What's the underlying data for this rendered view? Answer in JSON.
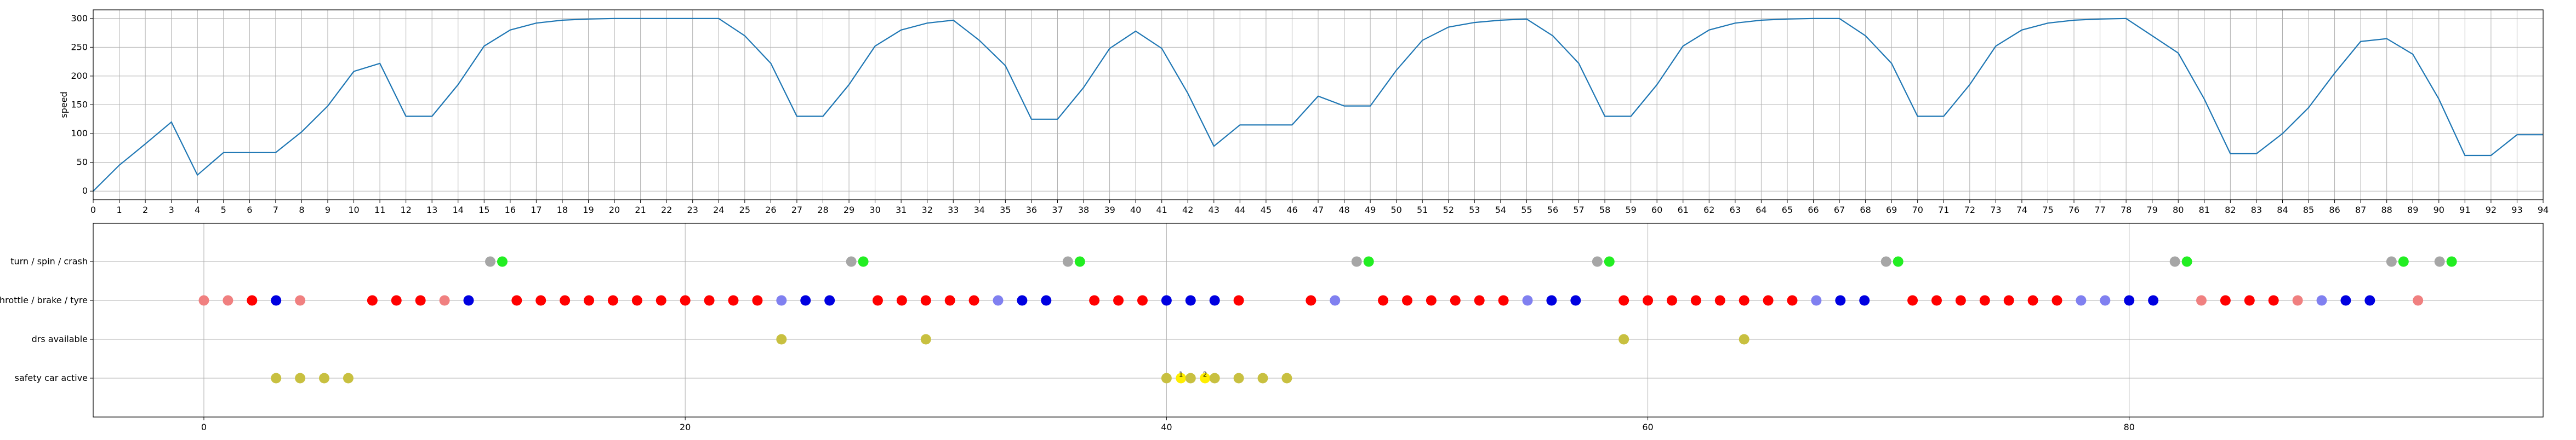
{
  "chart_data": [
    {
      "type": "line",
      "ylabel": "speed",
      "xlabel": "",
      "title": "",
      "xlim": [
        0,
        94
      ],
      "ylim": [
        -15,
        315
      ],
      "yticks": [
        0,
        50,
        100,
        150,
        200,
        250,
        300
      ],
      "xticks_step": 1,
      "grid": true,
      "series": [
        {
          "color": "#1f77b4",
          "x": [
            0,
            1,
            2,
            3,
            4,
            5,
            6,
            7,
            8,
            9,
            10,
            11,
            12,
            13,
            14,
            15,
            16,
            17,
            18,
            19,
            20,
            21,
            22,
            23,
            24,
            25,
            26,
            27,
            28,
            29,
            30,
            31,
            32,
            33,
            34,
            35,
            36,
            37,
            38,
            39,
            40,
            41,
            42,
            43,
            44,
            45,
            46,
            47,
            48,
            49,
            50,
            51,
            52,
            53,
            54,
            55,
            56,
            57,
            58,
            59,
            60,
            61,
            62,
            63,
            64,
            65,
            66,
            67,
            68,
            69,
            70,
            71,
            72,
            73,
            74,
            75,
            76,
            77,
            78,
            79,
            80,
            81,
            82,
            83,
            84,
            85,
            86,
            87,
            88,
            89,
            90,
            91,
            92,
            93,
            94
          ],
          "y": [
            0,
            45,
            82,
            120,
            28,
            67,
            67,
            67,
            103,
            148,
            208,
            222,
            130,
            130,
            185,
            252,
            280,
            292,
            297,
            299,
            300,
            300,
            300,
            300,
            300,
            270,
            222,
            130,
            130,
            185,
            252,
            280,
            292,
            297,
            262,
            218,
            125,
            125,
            180,
            248,
            278,
            248,
            170,
            78,
            115,
            115,
            115,
            165,
            148,
            148,
            210,
            262,
            285,
            293,
            297,
            299,
            270,
            222,
            130,
            130,
            185,
            252,
            280,
            292,
            297,
            299,
            300,
            300,
            270,
            222,
            130,
            130,
            185,
            252,
            280,
            292,
            297,
            299,
            300,
            270,
            240,
            160,
            65,
            65,
            100,
            145,
            205,
            260,
            265,
            238,
            160,
            62,
            62,
            98,
            98
          ]
        }
      ]
    },
    {
      "type": "scatter",
      "xlim": [
        -4.6,
        97.2
      ],
      "xticks": [
        0,
        20,
        40,
        60,
        80
      ],
      "grid": true,
      "categories": [
        "turn / spin / crash",
        "throttle / brake / tyre",
        "drs available",
        "safety car active"
      ],
      "series": [
        {
          "category": "turn / spin / crash",
          "points": [
            {
              "x": 11.9,
              "color": "#a6a6a6"
            },
            {
              "x": 12.4,
              "color": "#22ee22"
            },
            {
              "x": 26.9,
              "color": "#a6a6a6"
            },
            {
              "x": 27.4,
              "color": "#22ee22"
            },
            {
              "x": 35.9,
              "color": "#a6a6a6"
            },
            {
              "x": 36.4,
              "color": "#22ee22"
            },
            {
              "x": 47.9,
              "color": "#a6a6a6"
            },
            {
              "x": 48.4,
              "color": "#22ee22"
            },
            {
              "x": 57.9,
              "color": "#a6a6a6"
            },
            {
              "x": 58.4,
              "color": "#22ee22"
            },
            {
              "x": 69.9,
              "color": "#a6a6a6"
            },
            {
              "x": 70.4,
              "color": "#22ee22"
            },
            {
              "x": 81.9,
              "color": "#a6a6a6"
            },
            {
              "x": 82.4,
              "color": "#22ee22"
            },
            {
              "x": 90.9,
              "color": "#a6a6a6"
            },
            {
              "x": 91.4,
              "color": "#22ee22"
            },
            {
              "x": 92.9,
              "color": "#a6a6a6"
            },
            {
              "x": 93.4,
              "color": "#22ee22"
            }
          ]
        },
        {
          "category": "throttle / brake / tyre",
          "points": [
            {
              "x": 0,
              "color": "#f08080"
            },
            {
              "x": 1,
              "color": "#f08080"
            },
            {
              "x": 2,
              "color": "#ff0000"
            },
            {
              "x": 3,
              "color": "#0000e0"
            },
            {
              "x": 4,
              "color": "#f08080"
            },
            {
              "x": 7,
              "color": "#ff0000"
            },
            {
              "x": 8,
              "color": "#ff0000"
            },
            {
              "x": 9,
              "color": "#ff0000"
            },
            {
              "x": 10,
              "color": "#f08080"
            },
            {
              "x": 11,
              "color": "#0000e0"
            },
            {
              "x": 13,
              "color": "#ff0000"
            },
            {
              "x": 14,
              "color": "#ff0000"
            },
            {
              "x": 15,
              "color": "#ff0000"
            },
            {
              "x": 16,
              "color": "#ff0000"
            },
            {
              "x": 17,
              "color": "#ff0000"
            },
            {
              "x": 18,
              "color": "#ff0000"
            },
            {
              "x": 19,
              "color": "#ff0000"
            },
            {
              "x": 20,
              "color": "#ff0000"
            },
            {
              "x": 21,
              "color": "#ff0000"
            },
            {
              "x": 22,
              "color": "#ff0000"
            },
            {
              "x": 23,
              "color": "#ff0000"
            },
            {
              "x": 24,
              "color": "#8080f0"
            },
            {
              "x": 25,
              "color": "#0000e0"
            },
            {
              "x": 26,
              "color": "#0000e0"
            },
            {
              "x": 28,
              "color": "#ff0000"
            },
            {
              "x": 29,
              "color": "#ff0000"
            },
            {
              "x": 30,
              "color": "#ff0000"
            },
            {
              "x": 31,
              "color": "#ff0000"
            },
            {
              "x": 32,
              "color": "#ff0000"
            },
            {
              "x": 33,
              "color": "#8080f0"
            },
            {
              "x": 34,
              "color": "#0000e0"
            },
            {
              "x": 35,
              "color": "#0000e0"
            },
            {
              "x": 37,
              "color": "#ff0000"
            },
            {
              "x": 38,
              "color": "#ff0000"
            },
            {
              "x": 39,
              "color": "#ff0000"
            },
            {
              "x": 40,
              "color": "#0000e0"
            },
            {
              "x": 41,
              "color": "#0000e0"
            },
            {
              "x": 42,
              "color": "#0000e0"
            },
            {
              "x": 43,
              "color": "#ff0000"
            },
            {
              "x": 46,
              "color": "#ff0000"
            },
            {
              "x": 47,
              "color": "#8080f0"
            },
            {
              "x": 49,
              "color": "#ff0000"
            },
            {
              "x": 50,
              "color": "#ff0000"
            },
            {
              "x": 51,
              "color": "#ff0000"
            },
            {
              "x": 52,
              "color": "#ff0000"
            },
            {
              "x": 53,
              "color": "#ff0000"
            },
            {
              "x": 54,
              "color": "#ff0000"
            },
            {
              "x": 55,
              "color": "#8080f0"
            },
            {
              "x": 56,
              "color": "#0000e0"
            },
            {
              "x": 57,
              "color": "#0000e0"
            },
            {
              "x": 59,
              "color": "#ff0000"
            },
            {
              "x": 60,
              "color": "#ff0000"
            },
            {
              "x": 61,
              "color": "#ff0000"
            },
            {
              "x": 62,
              "color": "#ff0000"
            },
            {
              "x": 63,
              "color": "#ff0000"
            },
            {
              "x": 64,
              "color": "#ff0000"
            },
            {
              "x": 65,
              "color": "#ff0000"
            },
            {
              "x": 66,
              "color": "#ff0000"
            },
            {
              "x": 67,
              "color": "#8080f0"
            },
            {
              "x": 68,
              "color": "#0000e0"
            },
            {
              "x": 69,
              "color": "#0000e0"
            },
            {
              "x": 71,
              "color": "#ff0000"
            },
            {
              "x": 72,
              "color": "#ff0000"
            },
            {
              "x": 73,
              "color": "#ff0000"
            },
            {
              "x": 74,
              "color": "#ff0000"
            },
            {
              "x": 75,
              "color": "#ff0000"
            },
            {
              "x": 76,
              "color": "#ff0000"
            },
            {
              "x": 77,
              "color": "#ff0000"
            },
            {
              "x": 78,
              "color": "#8080f0"
            },
            {
              "x": 79,
              "color": "#8080f0"
            },
            {
              "x": 80,
              "color": "#0000e0"
            },
            {
              "x": 81,
              "color": "#0000e0"
            },
            {
              "x": 83,
              "color": "#f08080"
            },
            {
              "x": 84,
              "color": "#ff0000"
            },
            {
              "x": 85,
              "color": "#ff0000"
            },
            {
              "x": 86,
              "color": "#ff0000"
            },
            {
              "x": 87,
              "color": "#f08080"
            },
            {
              "x": 88,
              "color": "#8080f0"
            },
            {
              "x": 89,
              "color": "#0000e0"
            },
            {
              "x": 90,
              "color": "#0000e0"
            },
            {
              "x": 92,
              "color": "#f08080"
            }
          ]
        },
        {
          "category": "drs available",
          "points": [
            {
              "x": 24,
              "color": "#c8c040"
            },
            {
              "x": 30,
              "color": "#c8c040"
            },
            {
              "x": 59,
              "color": "#c8c040"
            },
            {
              "x": 64,
              "color": "#c8c040"
            }
          ]
        },
        {
          "category": "safety car active",
          "points": [
            {
              "x": 3,
              "color": "#c8c040"
            },
            {
              "x": 4,
              "color": "#c8c040"
            },
            {
              "x": 5,
              "color": "#c8c040"
            },
            {
              "x": 6,
              "color": "#c8c040"
            },
            {
              "x": 40,
              "color": "#c8c040"
            },
            {
              "x": 40.6,
              "color": "#ffee00",
              "label": "1"
            },
            {
              "x": 41,
              "color": "#c8c040"
            },
            {
              "x": 41.6,
              "color": "#ffee00",
              "label": "2"
            },
            {
              "x": 42,
              "color": "#c8c040"
            },
            {
              "x": 43,
              "color": "#c8c040"
            },
            {
              "x": 44,
              "color": "#c8c040"
            },
            {
              "x": 45,
              "color": "#c8c040"
            }
          ]
        }
      ]
    }
  ]
}
